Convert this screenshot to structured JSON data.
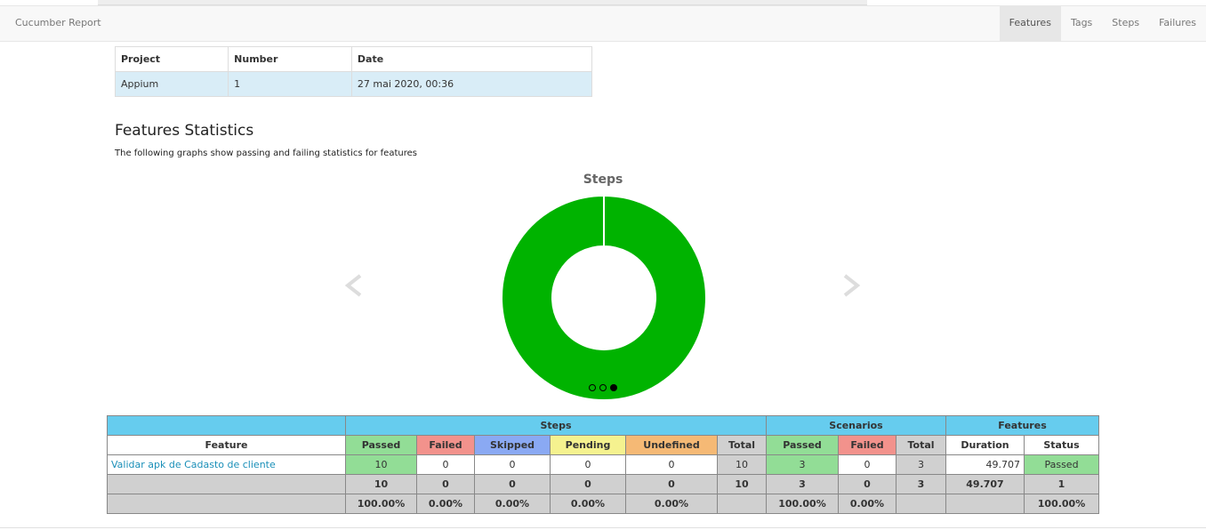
{
  "nav": {
    "brand": "Cucumber Report",
    "items": [
      "Features",
      "Tags",
      "Steps",
      "Failures"
    ]
  },
  "info_table": {
    "headers": [
      "Project",
      "Number",
      "Date"
    ],
    "rows": [
      [
        "Appium",
        "1",
        "27 mai 2020, 00:36"
      ]
    ]
  },
  "section": {
    "title": "Features Statistics",
    "subtitle": "The following graphs show passing and failing statistics for features"
  },
  "chart": {
    "type": "donut",
    "title": "Steps",
    "segments": [
      {
        "value": 10,
        "color": "#00b300"
      }
    ]
  },
  "features_table": {
    "group_headers": [
      "Steps",
      "Scenarios",
      "Features"
    ],
    "column_headers": [
      "Feature",
      "Passed",
      "Failed",
      "Skipped",
      "Pending",
      "Undefined",
      "Total",
      "Passed",
      "Failed",
      "Total",
      "Duration",
      "Status"
    ],
    "rows": [
      [
        "Validar apk de Cadasto de cliente",
        "10",
        "0",
        "0",
        "0",
        "0",
        "10",
        "3",
        "0",
        "3",
        "49.707",
        "Passed"
      ]
    ],
    "totals": [
      null,
      "10",
      "0",
      "0",
      "0",
      "0",
      "10",
      "3",
      "0",
      "3",
      "49.707",
      "1"
    ],
    "percentages": [
      null,
      "100.00%",
      "0.00%",
      "0.00%",
      "0.00%",
      "0.00%",
      null,
      "100.00%",
      "0.00%",
      null,
      null,
      "100.00%"
    ]
  }
}
